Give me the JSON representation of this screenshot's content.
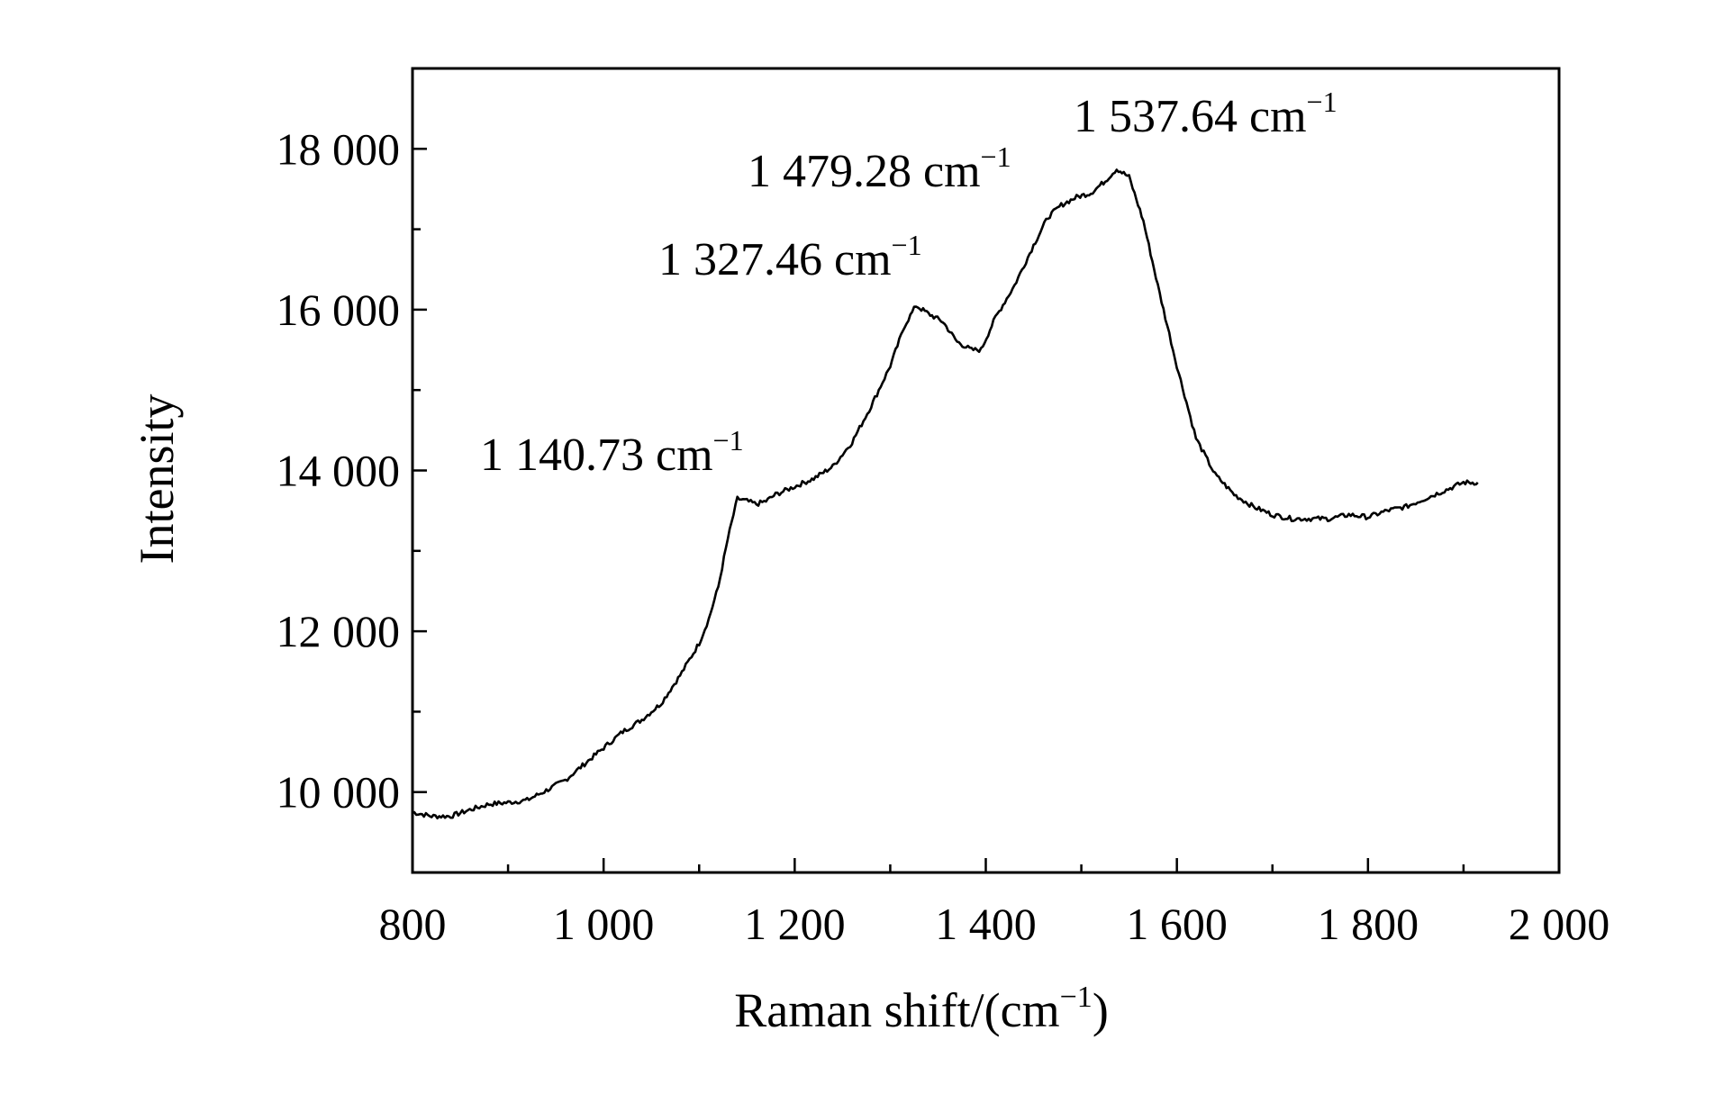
{
  "chart_data": {
    "type": "line",
    "title": "",
    "xlabel": "Raman shift/(cm",
    "xlabel_sup": "−1",
    "xlabel_tail": ")",
    "ylabel": "Intensity",
    "xlim": [
      800,
      2000
    ],
    "ylim": [
      9000,
      19000
    ],
    "x_ticks": [
      {
        "value": 800,
        "label": "800"
      },
      {
        "value": 1000,
        "label": "1 000"
      },
      {
        "value": 1200,
        "label": "1 200"
      },
      {
        "value": 1400,
        "label": "1 400"
      },
      {
        "value": 1600,
        "label": "1 600"
      },
      {
        "value": 1800,
        "label": "1 800"
      },
      {
        "value": 2000,
        "label": "2 000"
      }
    ],
    "x_minor_ticks": [
      900,
      1100,
      1300,
      1500,
      1700,
      1900
    ],
    "y_ticks": [
      {
        "value": 10000,
        "label": "10 000"
      },
      {
        "value": 12000,
        "label": "12 000"
      },
      {
        "value": 14000,
        "label": "14 000"
      },
      {
        "value": 16000,
        "label": "16 000"
      },
      {
        "value": 18000,
        "label": "18 000"
      }
    ],
    "y_minor_ticks": [
      11000,
      13000,
      15000,
      17000
    ],
    "grid": false,
    "legend": "none",
    "series": [
      {
        "x": [
          800,
          820,
          840,
          860,
          880,
          900,
          920,
          940,
          960,
          980,
          1000,
          1020,
          1040,
          1060,
          1080,
          1100,
          1110,
          1120,
          1130,
          1140,
          1150,
          1160,
          1170,
          1180,
          1200,
          1220,
          1240,
          1260,
          1280,
          1300,
          1315,
          1327,
          1340,
          1355,
          1370,
          1385,
          1395,
          1410,
          1430,
          1450,
          1465,
          1479,
          1495,
          1510,
          1525,
          1537,
          1550,
          1565,
          1580,
          1600,
          1620,
          1640,
          1660,
          1680,
          1700,
          1720,
          1740,
          1760,
          1780,
          1800,
          1820,
          1840,
          1860,
          1880,
          1900,
          1915
        ],
        "y": [
          9750,
          9700,
          9700,
          9780,
          9850,
          9870,
          9900,
          10020,
          10150,
          10350,
          10550,
          10750,
          10900,
          11100,
          11450,
          11850,
          12150,
          12550,
          13150,
          13650,
          13620,
          13580,
          13620,
          13700,
          13800,
          13900,
          14050,
          14350,
          14800,
          15300,
          15800,
          16050,
          15950,
          15850,
          15600,
          15500,
          15500,
          15900,
          16300,
          16800,
          17150,
          17300,
          17400,
          17450,
          17600,
          17750,
          17650,
          17100,
          16300,
          15300,
          14400,
          13950,
          13700,
          13550,
          13450,
          13400,
          13400,
          13400,
          13450,
          13420,
          13500,
          13550,
          13650,
          13750,
          13850,
          13850
        ],
        "color": "#000000"
      }
    ],
    "annotations": [
      {
        "text": "1 140.73 cm",
        "sup": "−1",
        "x": 1140.73
      },
      {
        "text": "1 327.46 cm",
        "sup": "−1",
        "x": 1327.46
      },
      {
        "text": "1 479.28 cm",
        "sup": "−1",
        "x": 1479.28
      },
      {
        "text": "1 537.64 cm",
        "sup": "−1",
        "x": 1537.64
      }
    ]
  }
}
